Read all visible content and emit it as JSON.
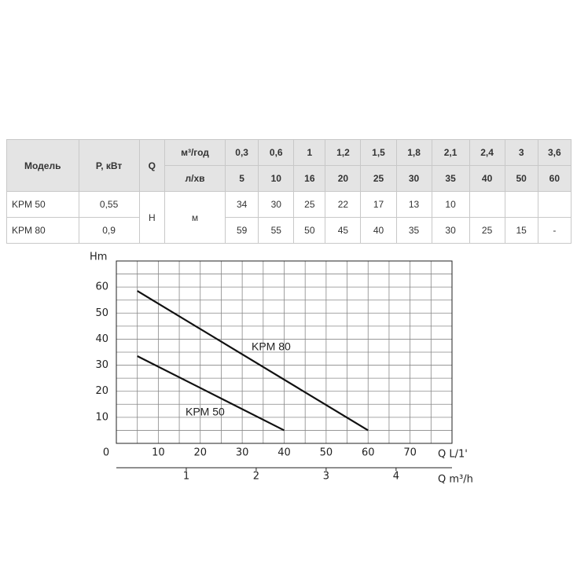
{
  "table": {
    "header": {
      "model": "Модель",
      "power": "Р, кВт",
      "q": "Q",
      "flow_m3h": "м³/год",
      "flow_m3h_values": [
        "0,3",
        "0,6",
        "1",
        "1,2",
        "1,5",
        "1,8",
        "2,1",
        "2,4",
        "3",
        "3,6"
      ],
      "flow_lmin": "л/хв",
      "flow_lmin_values": [
        "5",
        "10",
        "16",
        "20",
        "25",
        "30",
        "35",
        "40",
        "50",
        "60"
      ]
    },
    "head_symbol": "Н",
    "head_unit": "м",
    "rows": [
      {
        "model": "KPM 50",
        "power": "0,55",
        "values": [
          "34",
          "30",
          "25",
          "22",
          "17",
          "13",
          "10"
        ]
      },
      {
        "model": "KPM 80",
        "power": "0,9",
        "values": [
          "59",
          "55",
          "50",
          "45",
          "40",
          "35",
          "30",
          "25",
          "15",
          "-"
        ]
      }
    ]
  },
  "chart_data": {
    "type": "line",
    "y_label": "Hm",
    "x_label": "Q L/1'",
    "x2_label": "Q m³/h",
    "xlim": [
      0,
      80
    ],
    "xticks": [
      0,
      10,
      20,
      30,
      40,
      50,
      60,
      70
    ],
    "ylim": [
      0,
      70
    ],
    "yticks": [
      10,
      20,
      30,
      40,
      50,
      60
    ],
    "x2lim": [
      0,
      4.8
    ],
    "x2ticks": [
      1,
      2,
      3,
      4
    ],
    "x_grid": [
      5,
      10,
      15,
      20,
      25,
      30,
      35,
      40,
      45,
      50,
      55,
      60,
      65,
      70,
      75
    ],
    "y_grid": [
      5,
      10,
      15,
      20,
      25,
      30,
      35,
      40,
      45,
      50,
      55,
      60,
      65
    ],
    "series": [
      {
        "name": "KPM 80",
        "color": "#111111",
        "x": [
          5,
          60
        ],
        "values": [
          58.5,
          5
        ]
      },
      {
        "name": "KPM 50",
        "color": "#111111",
        "x": [
          5,
          40
        ],
        "values": [
          33.5,
          5
        ]
      }
    ]
  }
}
